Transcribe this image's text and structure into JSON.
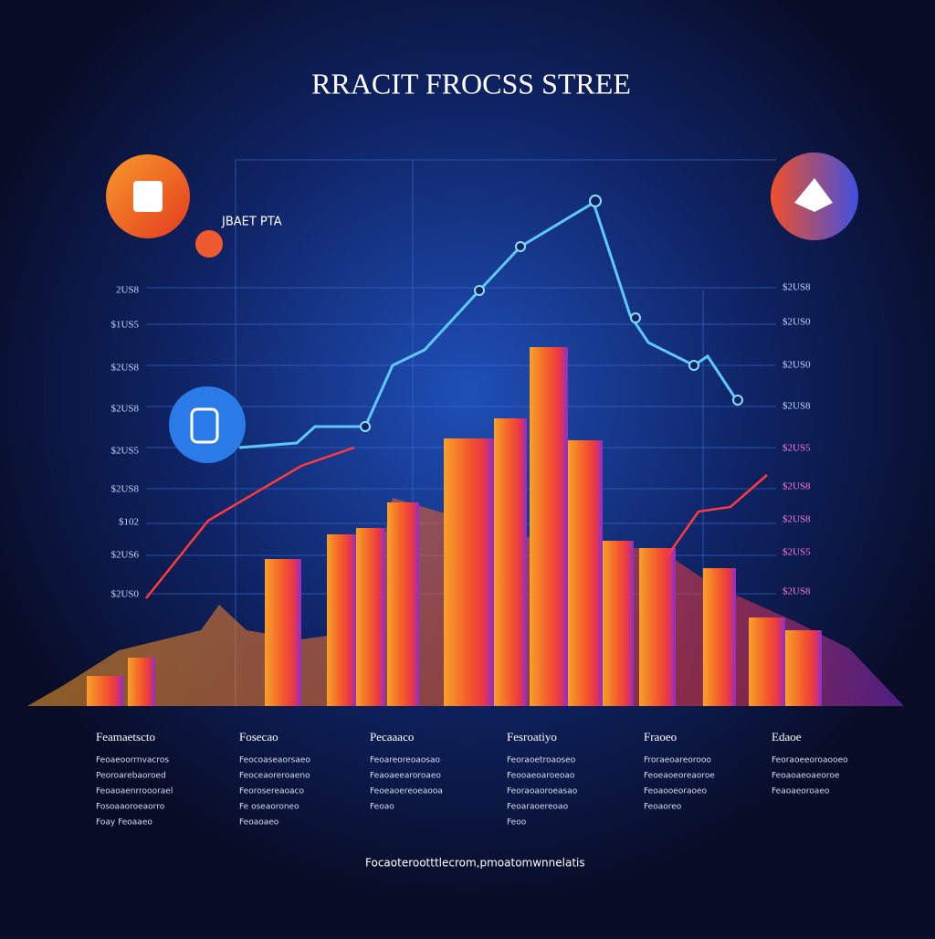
{
  "header": {
    "title": "RRACIT FROCSS STREE"
  },
  "chart": {
    "legend": "JBAET PTA",
    "left_labels": [
      "2US8",
      "$1US5",
      "$2US8",
      "$2US8",
      "$2US5",
      "$2US8",
      "$102",
      "$2US6",
      "$2US0"
    ],
    "right_labels": [
      "$2US8",
      "$2US0",
      "$2US0",
      "$2US8",
      "$2US5",
      "$2US8",
      "$2US8",
      "$2US5",
      "$2US8"
    ]
  },
  "columns": [
    {
      "heading": "Feamaetscto",
      "lines": [
        "Feoaeoorrnvacros",
        "Peoroarebaoroed",
        "Feoaoaenrrooorael",
        "Fosoaaoroeaorro",
        "Foay Feoaaeo"
      ]
    },
    {
      "heading": "Fosecao",
      "lines": [
        "Feocoaseaorsaeo",
        "Feoceaoreroaeno",
        "Feorosereaoaco",
        "Fe oseaoroneo",
        "Feoaoaeo"
      ]
    },
    {
      "heading": "Pecaaaco",
      "lines": [
        "Feoareoreoaosao",
        "Feaoaeearoroaeo",
        "Feoeaoereoeaooa",
        "Feoao"
      ]
    },
    {
      "heading": "Fesroatiyo",
      "lines": [
        "Feoraoetroaoseo",
        "Feooaeoaroeoao",
        "Feoraoaoroeasao",
        "Feoaraoereoao",
        "Feoo"
      ]
    },
    {
      "heading": "Fraoeo",
      "lines": [
        "Froraeoareorooo",
        "Feoeaoeoreaoroe",
        "Feoaooeoraoeo",
        "Feoaoreo"
      ]
    },
    {
      "heading": "Edaoe",
      "lines": [
        "Feoraoeeoroaooeo",
        "Feoaoaeoaeoroe",
        "Feaoaeoroaeo"
      ]
    }
  ],
  "footer": "Focaoterootttlecrom,pmoatomwnnelatis"
}
